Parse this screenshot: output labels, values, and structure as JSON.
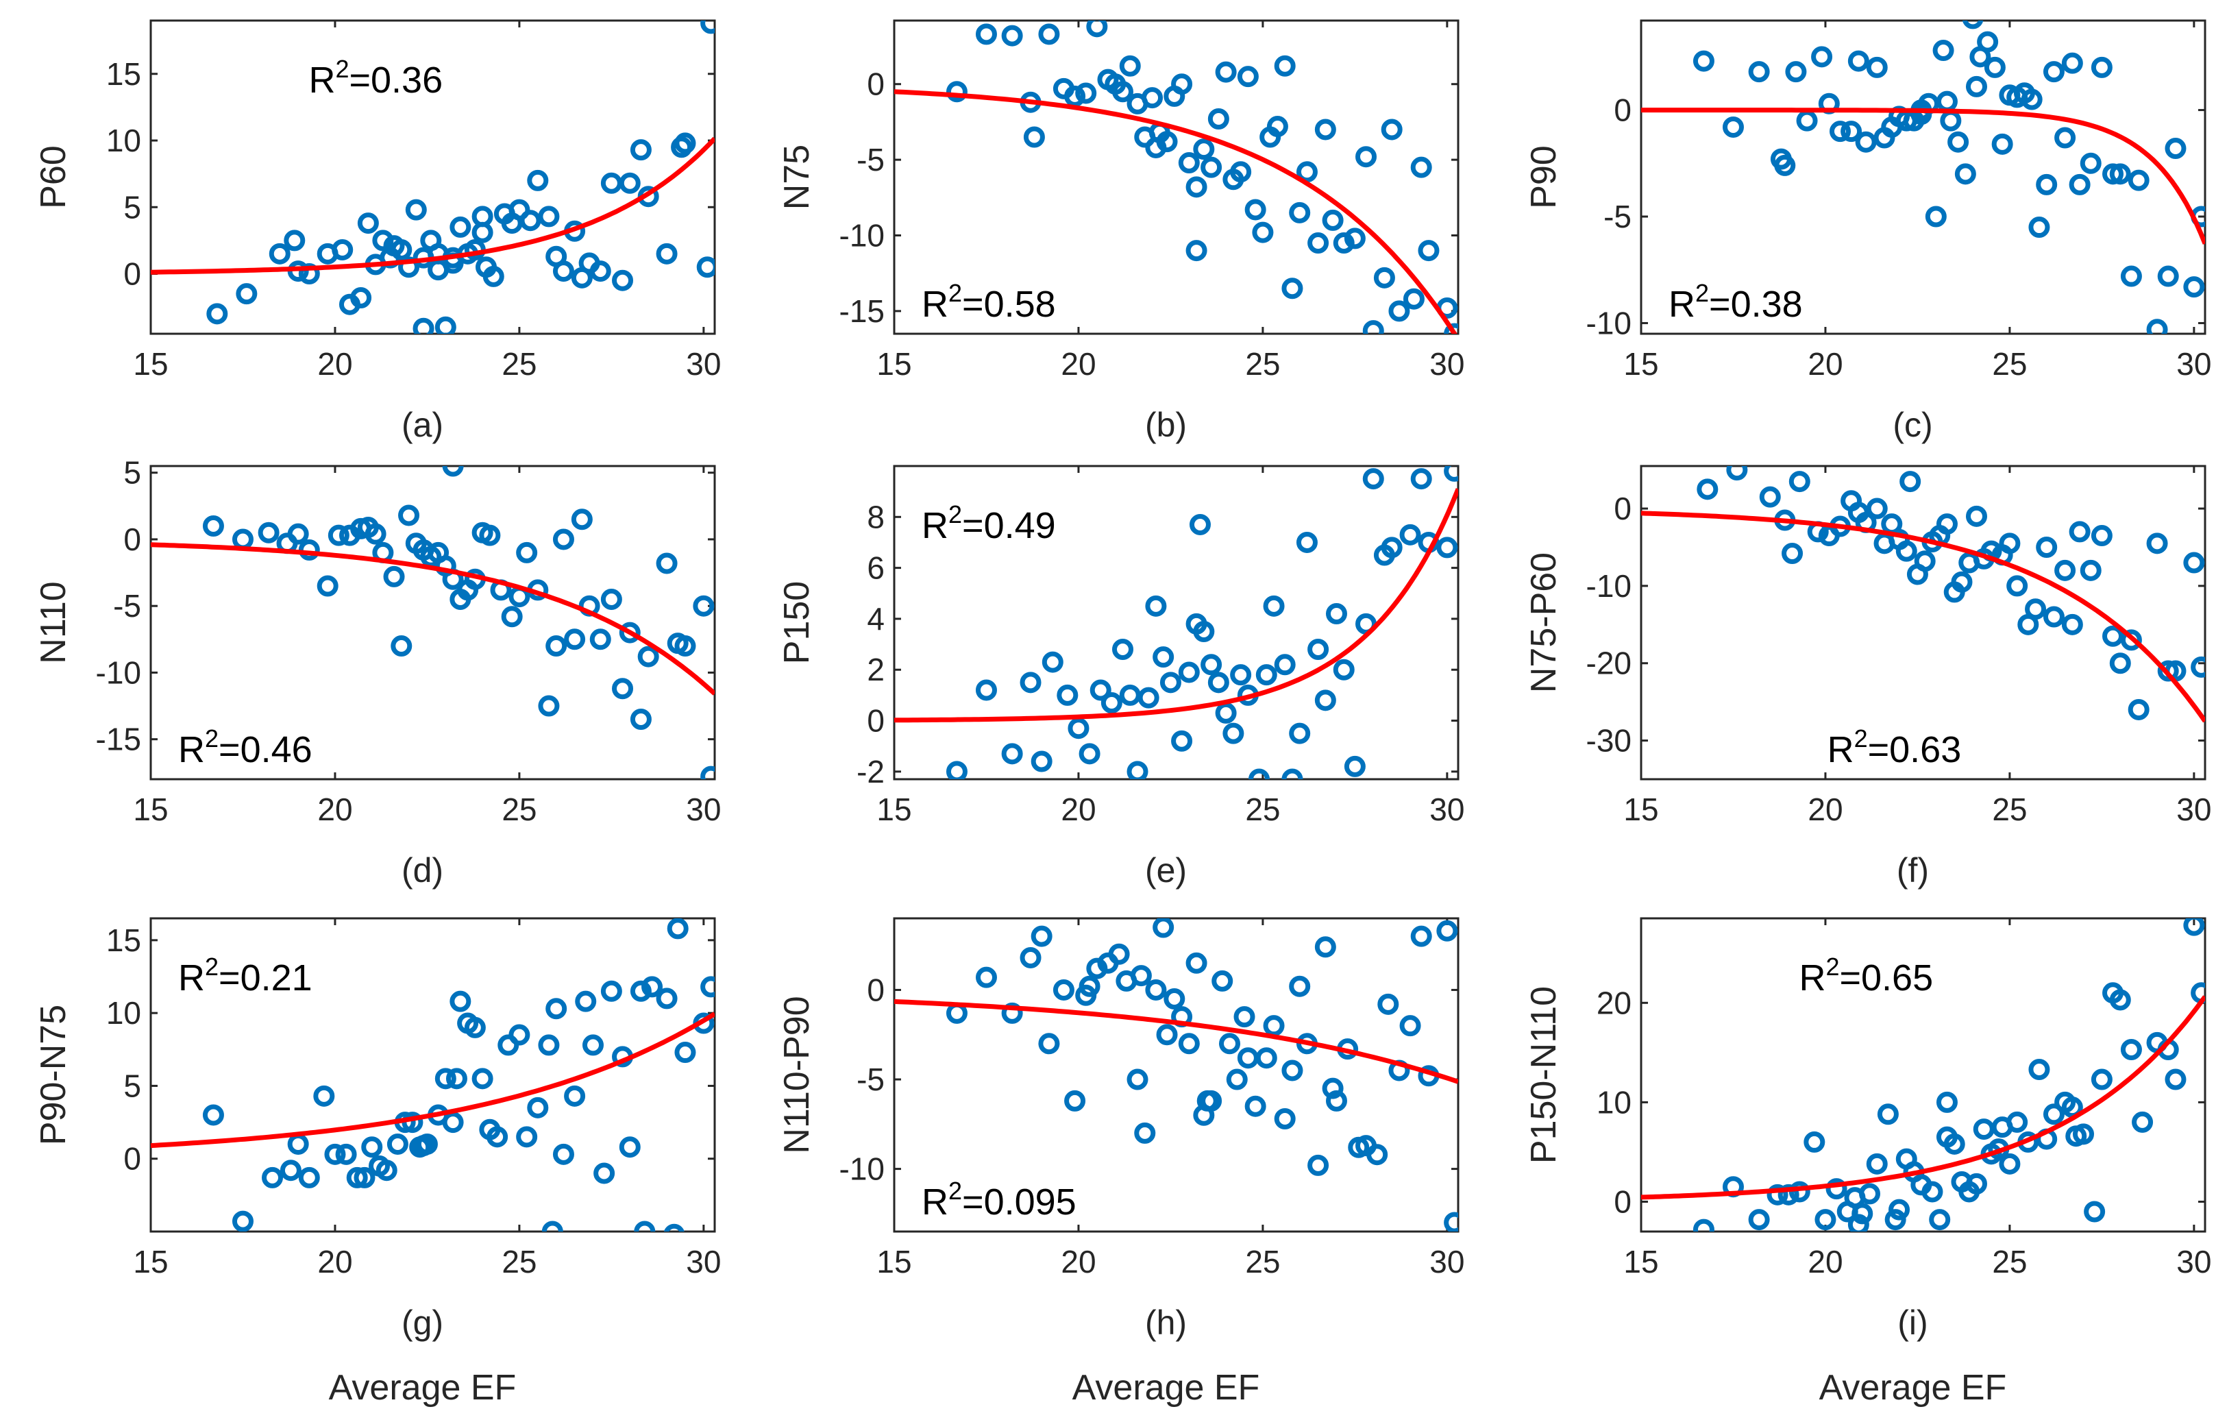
{
  "colors": {
    "points": "#0072BD",
    "fit": "#FF0000",
    "axis": "#262626"
  },
  "chart_data": [
    {
      "type": "scatter",
      "panel": "(a)",
      "ylabel": "P60",
      "xlabel": "",
      "annotation": {
        "prefix": "R",
        "sup": "2",
        "value": "=0.36",
        "pos": "top-center"
      },
      "xlim": [
        15,
        30.3
      ],
      "ylim": [
        -4.5,
        19
      ],
      "xticks": [
        15,
        20,
        25,
        30
      ],
      "yticks": [
        0,
        5,
        10,
        15
      ],
      "fit": {
        "a": 0.12,
        "b": 0.29,
        "x0": 15
      },
      "x": [
        16.8,
        17.6,
        18.5,
        18.9,
        19.0,
        19.3,
        19.8,
        20.2,
        20.4,
        20.7,
        20.9,
        21.1,
        21.3,
        21.5,
        21.8,
        22.0,
        22.2,
        22.4,
        22.6,
        22.8,
        23.0,
        23.2,
        23.4,
        23.6,
        23.8,
        24.0,
        24.1,
        24.3,
        24.6,
        24.8,
        25.0,
        25.3,
        25.5,
        25.8,
        26.0,
        26.2,
        26.5,
        26.7,
        26.9,
        27.2,
        27.5,
        27.8,
        28.0,
        28.3,
        28.5,
        29.0,
        29.4,
        29.5,
        30.1,
        30.2,
        22.4,
        23.2,
        24.0,
        21.6,
        22.8
      ],
      "y": [
        -3,
        -1.5,
        1.5,
        2.5,
        0.2,
        0,
        1.5,
        1.8,
        -2.3,
        -1.8,
        3.8,
        0.7,
        2.5,
        1.2,
        1.8,
        0.5,
        4.8,
        1.2,
        2.5,
        1.5,
        -4,
        0.8,
        3.5,
        1.5,
        1.8,
        4.3,
        0.5,
        -0.2,
        4.5,
        3.8,
        4.8,
        4.0,
        7.0,
        4.3,
        1.3,
        0.2,
        3.2,
        -0.3,
        0.8,
        0.2,
        6.8,
        -0.5,
        6.8,
        9.3,
        5.8,
        1.5,
        9.5,
        9.8,
        0.5,
        18.8,
        -4.1,
        1.2,
        3.1,
        2.1,
        0.3
      ]
    },
    {
      "type": "scatter",
      "panel": "(b)",
      "ylabel": "N75",
      "xlabel": "",
      "annotation": {
        "prefix": "R",
        "sup": "2",
        "value": "=0.58",
        "pos": "bottom-left"
      },
      "xlim": [
        15,
        30.3
      ],
      "ylim": [
        -16.5,
        4.2
      ],
      "xticks": [
        15,
        20,
        25,
        30
      ],
      "yticks": [
        -15,
        -10,
        -5,
        0
      ],
      "fit": {
        "a": -0.5,
        "b": 0.23,
        "x0": 15
      },
      "x": [
        16.7,
        17.5,
        18.2,
        18.7,
        18.8,
        19.2,
        19.6,
        19.9,
        20.2,
        20.5,
        20.8,
        21.0,
        21.2,
        21.4,
        21.6,
        21.8,
        22.0,
        22.2,
        22.4,
        22.6,
        22.8,
        23.0,
        23.2,
        23.4,
        23.6,
        23.8,
        24.0,
        24.2,
        24.4,
        24.6,
        24.8,
        25.0,
        25.2,
        25.4,
        25.6,
        25.8,
        26.0,
        26.2,
        26.5,
        26.7,
        26.9,
        27.2,
        27.5,
        27.8,
        28.0,
        28.3,
        28.5,
        28.7,
        29.1,
        29.3,
        29.5,
        30.0,
        30.2,
        23.2,
        22.1
      ],
      "y": [
        -0.5,
        3.3,
        3.2,
        -1.2,
        -3.5,
        3.3,
        -0.3,
        -0.8,
        -0.6,
        3.8,
        0.3,
        0,
        -0.5,
        1.2,
        -1.3,
        -3.5,
        -0.9,
        -3.2,
        -3.8,
        -0.8,
        0.0,
        -5.2,
        -6.8,
        -4.3,
        -5.5,
        -2.3,
        0.8,
        -6.3,
        -5.8,
        0.5,
        -8.3,
        -9.8,
        -3.5,
        -2.8,
        1.2,
        -13.5,
        -8.5,
        -5.8,
        -10.5,
        -3.0,
        -9.0,
        -10.5,
        -10.2,
        -4.8,
        -16.3,
        -12.8,
        -3.0,
        -15.0,
        -14.2,
        -5.5,
        -11.0,
        -14.8,
        -16.5,
        -11.0,
        -4.2
      ]
    },
    {
      "type": "scatter",
      "panel": "(c)",
      "ylabel": "P90",
      "xlabel": "",
      "annotation": {
        "prefix": "R",
        "sup": "2",
        "value": "=0.38",
        "pos": "bottom-left"
      },
      "xlim": [
        15,
        30.3
      ],
      "ylim": [
        -10.5,
        4.2
      ],
      "xticks": [
        15,
        20,
        25,
        30
      ],
      "yticks": [
        -10,
        -5,
        0
      ],
      "fit": {
        "a": -0.00014,
        "b": 0.7,
        "x0": 15
      },
      "x": [
        16.7,
        17.5,
        18.2,
        18.8,
        18.9,
        19.2,
        19.5,
        19.9,
        20.1,
        20.4,
        20.7,
        20.9,
        21.1,
        21.4,
        21.6,
        21.8,
        22.0,
        22.2,
        22.4,
        22.6,
        22.8,
        23.0,
        23.2,
        23.4,
        23.6,
        23.8,
        24.0,
        24.2,
        24.4,
        24.6,
        24.8,
        25.0,
        25.2,
        25.4,
        25.6,
        25.8,
        26.0,
        26.2,
        26.5,
        26.7,
        26.9,
        27.2,
        27.5,
        27.8,
        28.0,
        28.3,
        28.5,
        29.0,
        29.3,
        29.5,
        30.0,
        30.2,
        23.3,
        22.6,
        24.1
      ],
      "y": [
        2.3,
        -0.8,
        1.8,
        -2.3,
        -2.6,
        1.8,
        -0.5,
        2.5,
        0.3,
        -1.0,
        -1.0,
        2.3,
        -1.5,
        2.0,
        -1.3,
        -0.8,
        -0.3,
        -0.5,
        -0.5,
        0.0,
        0.3,
        -5.0,
        2.8,
        -0.5,
        -1.5,
        -3.0,
        4.3,
        2.5,
        3.2,
        2.0,
        -1.6,
        0.7,
        0.6,
        0.8,
        0.5,
        -5.5,
        -3.5,
        1.8,
        -1.3,
        2.2,
        -3.5,
        -2.5,
        2.0,
        -3.0,
        -3.0,
        -7.8,
        -3.3,
        -10.3,
        -7.8,
        -1.8,
        -8.3,
        -5.0,
        0.4,
        -0.2,
        1.1
      ]
    },
    {
      "type": "scatter",
      "panel": "(d)",
      "ylabel": "N110",
      "xlabel": "",
      "annotation": {
        "prefix": "R",
        "sup": "2",
        "value": "=0.46",
        "pos": "bottom-left"
      },
      "xlim": [
        15,
        30.3
      ],
      "ylim": [
        -18,
        5.5
      ],
      "xticks": [
        15,
        20,
        25,
        30
      ],
      "yticks": [
        -15,
        -10,
        -5,
        0,
        5
      ],
      "fit": {
        "a": -0.4,
        "b": 0.22,
        "x0": 15
      },
      "x": [
        16.7,
        17.5,
        18.2,
        18.7,
        19.0,
        19.3,
        19.8,
        20.1,
        20.4,
        20.7,
        20.9,
        21.1,
        21.3,
        21.6,
        21.8,
        22.0,
        22.2,
        22.4,
        22.6,
        22.8,
        23.0,
        23.2,
        23.4,
        23.6,
        23.8,
        24.0,
        24.2,
        24.5,
        24.8,
        25.0,
        25.2,
        25.5,
        25.8,
        26.0,
        26.2,
        26.5,
        26.7,
        26.9,
        27.2,
        27.5,
        27.8,
        28.0,
        28.3,
        28.5,
        29.0,
        29.3,
        29.5,
        30.0,
        30.2,
        23.2
      ],
      "y": [
        1.0,
        0.0,
        0.5,
        -0.3,
        0.4,
        -0.8,
        -3.5,
        0.3,
        0.3,
        0.8,
        0.9,
        0.4,
        -1.0,
        -2.8,
        -8.0,
        1.8,
        -0.3,
        -0.8,
        -1.3,
        -1.0,
        -2.0,
        -3.0,
        -4.5,
        -3.8,
        -3.0,
        0.5,
        0.3,
        -3.8,
        -5.8,
        -4.3,
        -1.0,
        -3.8,
        -12.5,
        -8.0,
        0.0,
        -7.5,
        1.5,
        -5.0,
        -7.5,
        -4.5,
        -11.2,
        -7.0,
        -13.5,
        -8.8,
        -1.8,
        -7.8,
        -8.0,
        -5.0,
        -17.8,
        5.5
      ]
    },
    {
      "type": "scatter",
      "panel": "(e)",
      "ylabel": "P150",
      "xlabel": "",
      "annotation": {
        "prefix": "R",
        "sup": "2",
        "value": "=0.49",
        "pos": "top-left"
      },
      "xlim": [
        15,
        30.3
      ],
      "ylim": [
        -2.3,
        10
      ],
      "xticks": [
        15,
        20,
        25,
        30
      ],
      "yticks": [
        -2,
        0,
        2,
        4,
        6,
        8
      ],
      "fit": {
        "a": 0.02,
        "b": 0.4,
        "x0": 15
      },
      "x": [
        16.7,
        17.5,
        18.2,
        18.7,
        19.0,
        19.3,
        19.7,
        20.0,
        20.3,
        20.6,
        20.9,
        21.2,
        21.4,
        21.6,
        21.9,
        22.1,
        22.3,
        22.5,
        22.8,
        23.0,
        23.2,
        23.4,
        23.6,
        23.8,
        24.0,
        24.2,
        24.4,
        24.6,
        24.9,
        25.1,
        25.3,
        25.6,
        25.8,
        26.0,
        26.2,
        26.5,
        26.7,
        27.0,
        27.2,
        27.5,
        27.8,
        28.0,
        28.3,
        28.5,
        29.0,
        29.3,
        29.5,
        30.0,
        30.2,
        23.3
      ],
      "y": [
        -2.0,
        1.2,
        -1.3,
        1.5,
        -1.6,
        2.3,
        1.0,
        -0.3,
        -1.3,
        1.2,
        0.7,
        2.8,
        1.0,
        -2.0,
        0.9,
        4.5,
        2.5,
        1.5,
        -0.8,
        1.9,
        3.8,
        3.5,
        2.2,
        1.5,
        0.3,
        -0.5,
        1.8,
        1.0,
        -2.3,
        1.8,
        4.5,
        2.2,
        -2.3,
        -0.5,
        7.0,
        2.8,
        0.8,
        4.2,
        2.0,
        -1.8,
        3.8,
        9.5,
        6.5,
        6.8,
        7.3,
        9.5,
        7.0,
        6.8,
        9.8,
        7.7
      ]
    },
    {
      "type": "scatter",
      "panel": "(f)",
      "ylabel": "N75-P60",
      "xlabel": "",
      "annotation": {
        "prefix": "R",
        "sup": "2",
        "value": "=0.63",
        "pos": "bottom-center"
      },
      "xlim": [
        15,
        30.3
      ],
      "ylim": [
        -35,
        5.5
      ],
      "xticks": [
        15,
        20,
        25,
        30
      ],
      "yticks": [
        -30,
        -20,
        -10,
        0
      ],
      "fit": {
        "a": -0.6,
        "b": 0.25,
        "x0": 15
      },
      "x": [
        16.8,
        17.6,
        18.5,
        18.9,
        19.1,
        19.3,
        19.8,
        20.1,
        20.4,
        20.7,
        20.9,
        21.1,
        21.4,
        21.6,
        21.8,
        22.0,
        22.2,
        22.5,
        22.7,
        22.9,
        23.1,
        23.3,
        23.5,
        23.7,
        23.9,
        24.1,
        24.3,
        24.5,
        24.8,
        25.0,
        25.2,
        25.5,
        25.7,
        26.0,
        26.2,
        26.5,
        26.7,
        26.9,
        27.2,
        27.5,
        27.8,
        28.0,
        28.3,
        28.5,
        29.0,
        29.3,
        29.5,
        30.0,
        30.2,
        22.3
      ],
      "y": [
        2.5,
        5.0,
        1.5,
        -1.5,
        -5.8,
        3.5,
        -3.0,
        -3.5,
        -2.3,
        1.0,
        -0.5,
        -1.8,
        0.0,
        -4.5,
        -2.0,
        -4.0,
        -5.5,
        -8.5,
        -6.8,
        -4.3,
        -3.5,
        -2.0,
        -10.8,
        -9.5,
        -7.0,
        -1.0,
        -6.5,
        -5.5,
        -6.0,
        -4.5,
        -10.0,
        -15.0,
        -13.0,
        -5.0,
        -14.0,
        -8.0,
        -15.0,
        -3.0,
        -8.0,
        -3.5,
        -16.5,
        -20.0,
        -17.0,
        -26.0,
        -4.5,
        -21.0,
        -21.0,
        -7.0,
        -20.5,
        3.5
      ]
    },
    {
      "type": "scatter",
      "panel": "(g)",
      "ylabel": "P90-N75",
      "xlabel": "Average EF",
      "annotation": {
        "prefix": "R",
        "sup": "2",
        "value": "=0.21",
        "pos": "top-left"
      },
      "xlim": [
        15,
        30.3
      ],
      "ylim": [
        -5,
        16.5
      ],
      "xticks": [
        15,
        20,
        25,
        30
      ],
      "yticks": [
        0,
        5,
        10,
        15
      ],
      "fit": {
        "a": 0.9,
        "b": 0.157,
        "x0": 15
      },
      "x": [
        16.7,
        17.5,
        18.3,
        18.8,
        19.0,
        19.3,
        19.7,
        20.0,
        20.3,
        20.6,
        20.8,
        21.0,
        21.2,
        21.4,
        21.7,
        21.9,
        22.1,
        22.3,
        22.5,
        22.8,
        23.0,
        23.2,
        23.4,
        23.6,
        23.8,
        24.0,
        24.2,
        24.4,
        24.7,
        25.0,
        25.2,
        25.5,
        25.8,
        26.0,
        26.2,
        26.5,
        26.8,
        27.0,
        27.3,
        27.5,
        27.8,
        28.0,
        28.3,
        28.6,
        29.0,
        29.3,
        29.5,
        30.0,
        30.2,
        23.3,
        22.4,
        25.9,
        28.4,
        29.2
      ],
      "y": [
        3.0,
        -4.3,
        -1.3,
        -0.8,
        1.0,
        -1.3,
        4.3,
        0.3,
        0.3,
        -1.3,
        -1.3,
        0.8,
        -0.5,
        -0.8,
        1.0,
        2.5,
        2.5,
        0.8,
        1.0,
        3.0,
        5.5,
        2.5,
        10.8,
        9.3,
        9.0,
        5.5,
        2.0,
        1.5,
        7.8,
        8.5,
        1.5,
        3.5,
        7.8,
        10.3,
        0.3,
        4.3,
        10.8,
        7.8,
        -1.0,
        11.5,
        7.0,
        0.8,
        11.5,
        11.8,
        11.0,
        15.8,
        7.3,
        9.3,
        11.8,
        5.5,
        0.9,
        -5.0,
        -5.0,
        -5.2
      ]
    },
    {
      "type": "scatter",
      "panel": "(h)",
      "ylabel": "N110-P90",
      "xlabel": "Average EF",
      "annotation": {
        "prefix": "R",
        "sup": "2",
        "value": "=0.095",
        "pos": "bottom-left"
      },
      "xlim": [
        15,
        30.3
      ],
      "ylim": [
        -13.5,
        4
      ],
      "xticks": [
        15,
        20,
        25,
        30
      ],
      "yticks": [
        -10,
        -5,
        0
      ],
      "fit": {
        "a": -0.65,
        "b": 0.135,
        "x0": 15
      },
      "x": [
        16.7,
        17.5,
        18.2,
        18.7,
        19.0,
        19.2,
        19.6,
        19.9,
        20.2,
        20.5,
        20.8,
        21.1,
        21.3,
        21.6,
        21.8,
        22.1,
        22.3,
        22.6,
        22.8,
        23.0,
        23.2,
        23.4,
        23.6,
        23.9,
        24.1,
        24.3,
        24.5,
        24.8,
        25.1,
        25.3,
        25.6,
        25.8,
        26.0,
        26.2,
        26.5,
        26.7,
        27.0,
        27.3,
        27.6,
        27.8,
        28.1,
        28.4,
        28.7,
        29.0,
        29.3,
        29.5,
        30.0,
        30.2,
        22.4,
        23.5,
        21.7,
        24.6,
        26.9,
        20.3
      ],
      "y": [
        -1.3,
        0.7,
        -1.3,
        1.8,
        3.0,
        -3.0,
        0.0,
        -6.2,
        -0.3,
        1.2,
        1.5,
        2.0,
        0.5,
        -5.0,
        -8.0,
        0.0,
        3.5,
        -0.5,
        -1.5,
        -3.0,
        1.5,
        -7.0,
        -6.2,
        0.5,
        -3.0,
        -5.0,
        -1.5,
        -6.5,
        -3.8,
        -2.0,
        -7.2,
        -4.5,
        0.2,
        -3.0,
        -9.8,
        2.4,
        -6.2,
        -3.3,
        -8.8,
        -8.7,
        -9.2,
        -0.8,
        -4.5,
        -2.0,
        3.0,
        -4.8,
        3.3,
        -13.0,
        -2.5,
        -6.2,
        0.8,
        -3.8,
        -5.5,
        0.2
      ]
    },
    {
      "type": "scatter",
      "panel": "(i)",
      "ylabel": "P150-N110",
      "xlabel": "Average EF",
      "annotation": {
        "prefix": "R",
        "sup": "2",
        "value": "=0.65",
        "pos": "top-center"
      },
      "xlim": [
        15,
        30.3
      ],
      "ylim": [
        -3,
        28.5
      ],
      "xticks": [
        15,
        20,
        25,
        30
      ],
      "yticks": [
        0,
        10,
        20
      ],
      "fit": {
        "a": 0.45,
        "b": 0.25,
        "x0": 15
      },
      "x": [
        16.7,
        17.5,
        18.2,
        18.7,
        19.0,
        19.3,
        19.7,
        20.0,
        20.3,
        20.6,
        20.9,
        21.2,
        21.4,
        21.7,
        21.9,
        22.2,
        22.4,
        22.6,
        22.9,
        23.1,
        23.3,
        23.5,
        23.7,
        23.9,
        24.1,
        24.3,
        24.5,
        24.8,
        25.0,
        25.2,
        25.5,
        25.8,
        26.0,
        26.2,
        26.5,
        26.7,
        27.0,
        27.3,
        27.5,
        27.8,
        28.0,
        28.3,
        28.6,
        29.0,
        29.3,
        29.5,
        30.0,
        30.2,
        23.3,
        22.0,
        24.7,
        26.8,
        21.0,
        20.8
      ],
      "y": [
        -2.8,
        1.5,
        -1.8,
        0.7,
        0.7,
        1.0,
        6.0,
        -1.8,
        1.3,
        -1.0,
        -2.3,
        0.8,
        3.8,
        8.8,
        -1.8,
        4.3,
        3.0,
        1.7,
        1.0,
        -1.8,
        10.0,
        5.8,
        2.0,
        1.0,
        1.8,
        7.3,
        4.8,
        7.5,
        3.8,
        8.0,
        6.0,
        13.3,
        6.3,
        8.8,
        10.0,
        9.5,
        6.8,
        -1.0,
        12.3,
        21.0,
        20.3,
        15.3,
        8.0,
        16.0,
        15.3,
        12.3,
        27.8,
        21.0,
        6.5,
        -0.8,
        5.3,
        6.6,
        -1.2,
        0.4
      ]
    }
  ]
}
